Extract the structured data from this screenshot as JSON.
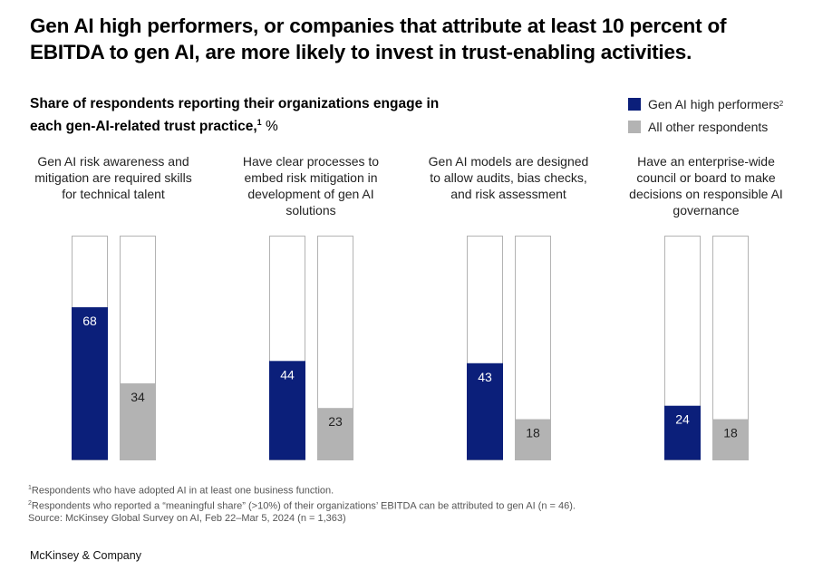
{
  "title": "Gen AI high performers, or companies that attribute at least 10 percent of EBITDA to gen AI, are more likely to invest in trust-enabling activities.",
  "subtitle": {
    "text": "Share of respondents reporting their organizations engage in each gen-AI-related trust practice,",
    "sup": "1",
    "unit": " %"
  },
  "legend": [
    {
      "label": "Gen AI high performers",
      "sup": "2",
      "color": "#0b1f7a"
    },
    {
      "label": "All other respondents",
      "sup": "",
      "color": "#b3b3b3"
    }
  ],
  "chart_data": {
    "type": "bar",
    "title": "Share of respondents reporting their organizations engage in each gen-AI-related trust practice, %",
    "categories": [
      "Gen AI risk awareness and mitigation are required skills for technical talent",
      "Have clear processes to embed risk mitigation in development of gen AI solutions",
      "Gen AI models are designed to allow audits, bias checks, and risk assessment",
      "Have an enterprise-wide council or board to make decisions on responsible AI governance"
    ],
    "series": [
      {
        "name": "Gen AI high performers",
        "values": [
          68,
          44,
          43,
          24
        ]
      },
      {
        "name": "All other respondents",
        "values": [
          34,
          23,
          18,
          18
        ]
      }
    ],
    "ylim": [
      0,
      100
    ],
    "xlabel": "",
    "ylabel": "%"
  },
  "footnotes": [
    {
      "sup": "1",
      "text": "Respondents who have adopted AI in at least one business function."
    },
    {
      "sup": "2",
      "text": "Respondents who reported a “meaningful share” (>10%) of their organizations’ EBITDA can be attributed to gen AI (n = 46)."
    },
    {
      "sup": "",
      "text": " Source: McKinsey Global Survey on AI, Feb 22–Mar 5, 2024 (n = 1,363)"
    }
  ],
  "brand": "McKinsey & Company"
}
